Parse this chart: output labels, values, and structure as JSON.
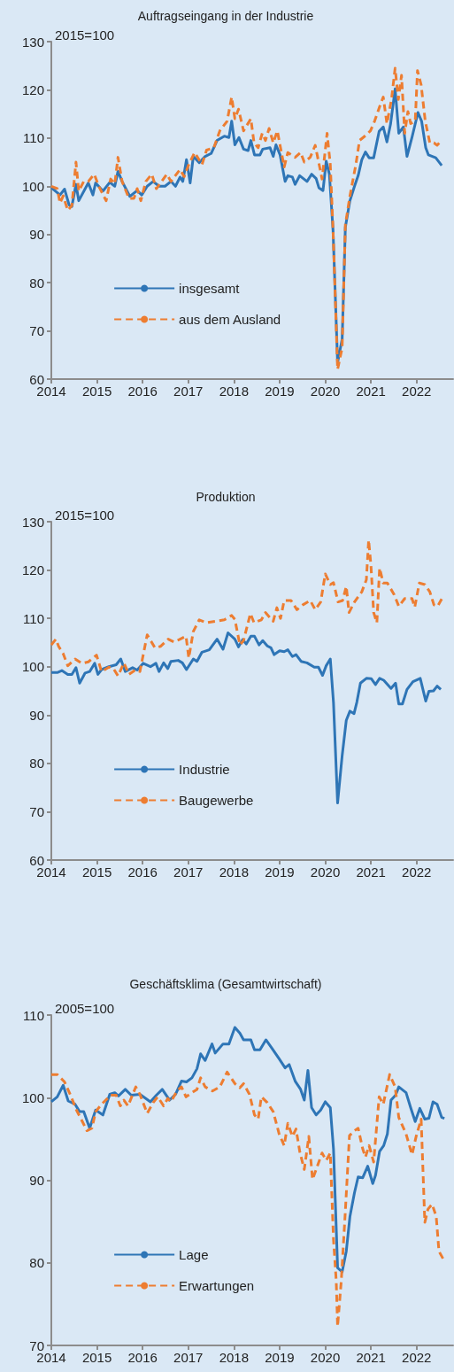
{
  "chart_data": [
    {
      "type": "line",
      "title": "Auftragseingang in der Industrie",
      "ylabel": "2015=100",
      "xlim": [
        2014,
        2022.8
      ],
      "xticks": [
        2014,
        2015,
        2016,
        2017,
        2018,
        2019,
        2020,
        2021,
        2022
      ],
      "ylim": [
        60,
        130
      ],
      "yticks": [
        60,
        70,
        80,
        90,
        100,
        110,
        120,
        130
      ],
      "legend": "bottom left",
      "series": [
        {
          "name": "insgesamt",
          "color": "#2e75b6",
          "line_style": "solid",
          "x": [
            2014.0,
            2014.19,
            2014.29,
            2014.39,
            2014.45,
            2014.54,
            2014.6,
            2014.81,
            2014.91,
            2014.97,
            2015.13,
            2015.28,
            2015.39,
            2015.46,
            2015.55,
            2015.72,
            2015.88,
            2015.98,
            2016.1,
            2016.23,
            2016.36,
            2016.49,
            2016.62,
            2016.72,
            2016.82,
            2016.88,
            2016.96,
            2017.04,
            2017.11,
            2017.24,
            2017.37,
            2017.5,
            2017.63,
            2017.79,
            2017.89,
            2017.95,
            2018.02,
            2018.11,
            2018.21,
            2018.31,
            2018.37,
            2018.45,
            2018.57,
            2018.63,
            2018.79,
            2018.86,
            2018.92,
            2019.01,
            2019.12,
            2019.18,
            2019.28,
            2019.34,
            2019.44,
            2019.6,
            2019.7,
            2019.8,
            2019.86,
            2019.95,
            2020.02,
            2020.09,
            2020.17,
            2020.27,
            2020.37,
            2020.44,
            2020.54,
            2020.64,
            2020.72,
            2020.8,
            2020.88,
            2020.96,
            2021.06,
            2021.18,
            2021.27,
            2021.35,
            2021.43,
            2021.53,
            2021.61,
            2021.71,
            2021.79,
            2021.9,
            2022.03,
            2022.11,
            2022.2,
            2022.26,
            2022.42,
            2022.55
          ],
          "values": [
            99.7,
            98.2,
            99.4,
            96.1,
            95.8,
            100.4,
            97,
            100.7,
            98.2,
            100.7,
            99,
            100.8,
            100,
            103.1,
            101,
            97.9,
            99.1,
            98.2,
            100,
            101,
            100,
            100,
            101,
            100,
            101.9,
            101,
            105.5,
            100.7,
            106.2,
            104.9,
            106.2,
            106.8,
            109.5,
            110.4,
            110.1,
            113.5,
            108.6,
            110.1,
            107.7,
            107.4,
            109.5,
            106.5,
            106.5,
            107.7,
            108,
            106.2,
            108.6,
            106.5,
            101,
            102.2,
            101.9,
            100.4,
            102.2,
            101,
            102.5,
            101.6,
            99.7,
            99.1,
            105.2,
            102.5,
            90.9,
            63.4,
            68.3,
            91.5,
            97,
            100,
            102.2,
            105.5,
            107.1,
            105.9,
            105.9,
            111.4,
            112.3,
            109.2,
            112.9,
            120.2,
            111,
            112.3,
            106.2,
            110.2,
            115.3,
            113.5,
            108,
            106.5,
            105.9,
            104.3
          ]
        },
        {
          "name": "aus dem Ausland",
          "color": "#ed7d31",
          "line_style": "dashed",
          "x": [
            2014.0,
            2014.13,
            2014.19,
            2014.26,
            2014.36,
            2014.45,
            2014.54,
            2014.6,
            2014.71,
            2014.81,
            2014.94,
            2015.04,
            2015.2,
            2015.3,
            2015.39,
            2015.46,
            2015.55,
            2015.7,
            2015.81,
            2015.88,
            2015.96,
            2016.07,
            2016.2,
            2016.3,
            2016.53,
            2016.62,
            2016.82,
            2016.91,
            2017.01,
            2017.14,
            2017.3,
            2017.4,
            2017.56,
            2017.69,
            2017.85,
            2017.95,
            2018.02,
            2018.1,
            2018.21,
            2018.37,
            2018.44,
            2018.53,
            2018.62,
            2018.69,
            2018.77,
            2018.86,
            2018.95,
            2019.02,
            2019.1,
            2019.18,
            2019.34,
            2019.46,
            2019.54,
            2019.67,
            2019.78,
            2019.93,
            2020.04,
            2020.11,
            2020.17,
            2020.27,
            2020.37,
            2020.44,
            2020.54,
            2020.67,
            2020.75,
            2020.88,
            2020.99,
            2021.08,
            2021.19,
            2021.27,
            2021.35,
            2021.45,
            2021.53,
            2021.6,
            2021.67,
            2021.74,
            2021.81,
            2021.87,
            2021.97,
            2022.02,
            2022.1,
            2022.19,
            2022.29,
            2022.38,
            2022.45,
            2022.55
          ],
          "values": [
            100,
            99.5,
            96.5,
            98,
            95,
            96,
            105,
            99,
            101,
            101,
            102.5,
            100,
            97,
            101.5,
            100.5,
            106,
            101,
            97.5,
            97.5,
            99.5,
            97,
            101,
            102.5,
            99.5,
            102.5,
            101,
            103.5,
            102,
            104.5,
            107,
            104.5,
            107.5,
            108,
            111.5,
            113.5,
            118.5,
            114,
            116,
            111.5,
            114,
            109,
            108,
            111,
            109.5,
            112,
            109,
            111.5,
            108,
            104,
            107,
            106,
            107,
            105,
            106,
            108.5,
            101.5,
            111,
            104.5,
            91,
            62,
            66.5,
            92,
            98,
            104.5,
            109.5,
            110.5,
            111.5,
            113.5,
            116.5,
            118.5,
            113,
            118,
            124.5,
            118,
            123,
            111,
            115.5,
            113,
            113.5,
            124,
            121,
            113.5,
            109,
            109,
            108.5,
            109.5
          ]
        }
      ]
    },
    {
      "type": "line",
      "title": "Produktion",
      "ylabel": "2015=100",
      "xlim": [
        2014,
        2022.8
      ],
      "xticks": [
        2014,
        2015,
        2016,
        2017,
        2018,
        2019,
        2020,
        2021,
        2022
      ],
      "ylim": [
        60,
        130
      ],
      "yticks": [
        60,
        70,
        80,
        90,
        100,
        110,
        120,
        130
      ],
      "legend": "bottom left",
      "series": [
        {
          "name": "Industrie",
          "color": "#2e75b6",
          "line_style": "solid",
          "x": [
            2014,
            2014.13,
            2014.23,
            2014.36,
            2014.45,
            2014.54,
            2014.62,
            2014.74,
            2014.84,
            2014.95,
            2015.02,
            2015.1,
            2015.26,
            2015.42,
            2015.52,
            2015.62,
            2015.78,
            2015.88,
            2016.01,
            2016.17,
            2016.29,
            2016.36,
            2016.46,
            2016.55,
            2016.62,
            2016.78,
            2016.87,
            2016.96,
            2017.11,
            2017.19,
            2017.3,
            2017.46,
            2017.63,
            2017.76,
            2017.87,
            2018.02,
            2018.1,
            2018.19,
            2018.27,
            2018.37,
            2018.45,
            2018.55,
            2018.63,
            2018.73,
            2018.81,
            2018.88,
            2019.0,
            2019.1,
            2019.18,
            2019.28,
            2019.36,
            2019.47,
            2019.6,
            2019.76,
            2019.85,
            2019.94,
            2020.02,
            2020.11,
            2020.18,
            2020.27,
            2020.37,
            2020.46,
            2020.54,
            2020.63,
            2020.69,
            2020.77,
            2020.9,
            2021.01,
            2021.1,
            2021.19,
            2021.28,
            2021.44,
            2021.54,
            2021.61,
            2021.69,
            2021.79,
            2021.92,
            2022.08,
            2022.2,
            2022.27,
            2022.37,
            2022.45,
            2022.53
          ],
          "values": [
            98.8,
            98.8,
            99.2,
            98.4,
            98.4,
            99.8,
            96.6,
            98.7,
            99,
            100.7,
            98.4,
            99.4,
            100,
            100.4,
            101.6,
            99,
            99.8,
            99.3,
            100.7,
            100,
            100.7,
            99,
            100.8,
            99.6,
            101.1,
            101.3,
            100.8,
            99.4,
            101.6,
            101.1,
            103,
            103.5,
            105.7,
            103.6,
            107,
            105.7,
            104.1,
            105.6,
            104.7,
            106.3,
            106.3,
            104.5,
            105.4,
            104.3,
            103.9,
            102.5,
            103.3,
            103.1,
            103.5,
            102.1,
            102.5,
            101.1,
            100.8,
            99.9,
            99.9,
            98.2,
            100.2,
            101.6,
            92.6,
            71.8,
            81.6,
            88.9,
            90.8,
            90.3,
            92.6,
            96.6,
            97.6,
            97.5,
            96.3,
            97.6,
            97.2,
            95.5,
            96.6,
            92.3,
            92.3,
            95.3,
            96.9,
            97.6,
            92.9,
            94.9,
            95,
            96,
            95.3
          ]
        },
        {
          "name": "Baugewerbe",
          "color": "#ed7d31",
          "line_style": "dashed",
          "x": [
            2014,
            2014.1,
            2014.16,
            2014.26,
            2014.36,
            2014.52,
            2014.67,
            2014.81,
            2014.99,
            2015.1,
            2015.26,
            2015.36,
            2015.46,
            2015.59,
            2015.7,
            2015.85,
            2015.94,
            2016.1,
            2016.27,
            2016.39,
            2016.56,
            2016.69,
            2016.82,
            2016.95,
            2017.01,
            2017.11,
            2017.24,
            2017.4,
            2017.59,
            2017.79,
            2017.95,
            2018.02,
            2018.13,
            2018.21,
            2018.36,
            2018.44,
            2018.6,
            2018.69,
            2018.86,
            2018.94,
            2019.02,
            2019.1,
            2019.25,
            2019.38,
            2019.51,
            2019.67,
            2019.78,
            2019.9,
            2020.0,
            2020.11,
            2020.18,
            2020.28,
            2020.38,
            2020.46,
            2020.52,
            2020.64,
            2020.8,
            2020.9,
            2020.95,
            2021.0,
            2021.06,
            2021.13,
            2021.19,
            2021.27,
            2021.36,
            2021.51,
            2021.61,
            2021.74,
            2021.9,
            2021.96,
            2022.06,
            2022.18,
            2022.29,
            2022.38,
            2022.46,
            2022.55
          ],
          "values": [
            104.5,
            105.7,
            104.2,
            102.7,
            100.2,
            101.6,
            100.7,
            101,
            102.4,
            99,
            99.9,
            99.6,
            98.1,
            100.8,
            98.4,
            99.4,
            99,
            106.6,
            103.9,
            104.2,
            105.7,
            105.1,
            105.7,
            106.3,
            101.8,
            107.3,
            109.7,
            109.1,
            109.4,
            109.7,
            110.6,
            109.8,
            104.5,
            105.4,
            111,
            109.1,
            109.7,
            111.2,
            109.4,
            112.2,
            110,
            113.7,
            113.7,
            111.8,
            112.8,
            113.7,
            111.8,
            113.4,
            119.2,
            117,
            117.4,
            113.4,
            113.7,
            116.6,
            111.2,
            113.4,
            115.5,
            118,
            126.2,
            121,
            111.2,
            109.1,
            120.4,
            117.3,
            117.3,
            114.9,
            112.5,
            114.1,
            114.1,
            112.3,
            117.3,
            117,
            115.5,
            112.8,
            112.5,
            114
          ]
        }
      ]
    },
    {
      "type": "line",
      "title": "Geschäftsklima (Gesamtwirtschaft)",
      "ylabel": "2005=100",
      "xlim": [
        2014,
        2022.8
      ],
      "xticks": [
        2014,
        2015,
        2016,
        2017,
        2018,
        2019,
        2020,
        2021,
        2022
      ],
      "ylim": [
        70,
        110
      ],
      "yticks": [
        70,
        80,
        90,
        100,
        110
      ],
      "legend": "bottom left",
      "series": [
        {
          "name": "Lage",
          "color": "#2e75b6",
          "line_style": "solid",
          "x": [
            2014,
            2014.13,
            2014.26,
            2014.37,
            2014.52,
            2014.62,
            2014.71,
            2014.84,
            2014.97,
            2015.13,
            2015.28,
            2015.39,
            2015.47,
            2015.62,
            2015.75,
            2015.94,
            2016.07,
            2016.17,
            2016.3,
            2016.43,
            2016.59,
            2016.72,
            2016.85,
            2016.96,
            2017.08,
            2017.19,
            2017.27,
            2017.37,
            2017.52,
            2017.59,
            2017.76,
            2017.89,
            2018.02,
            2018.13,
            2018.21,
            2018.37,
            2018.45,
            2018.57,
            2018.7,
            2018.83,
            2018.99,
            2019.12,
            2019.21,
            2019.34,
            2019.46,
            2019.54,
            2019.62,
            2019.7,
            2019.8,
            2019.9,
            2020.0,
            2020.11,
            2020.18,
            2020.27,
            2020.37,
            2020.46,
            2020.54,
            2020.64,
            2020.72,
            2020.82,
            2020.93,
            2021.04,
            2021.1,
            2021.19,
            2021.28,
            2021.36,
            2021.44,
            2021.54,
            2021.61,
            2021.77,
            2021.87,
            2021.97,
            2022.07,
            2022.18,
            2022.27,
            2022.36,
            2022.45,
            2022.55,
            2022.61
          ],
          "values": [
            99.5,
            100.1,
            101.5,
            99.6,
            99.2,
            98.3,
            98.3,
            96.3,
            98.5,
            97.9,
            100.4,
            100.6,
            100.2,
            101,
            100.3,
            100.4,
            99.9,
            99.5,
            100.3,
            101,
            99.7,
            100.4,
            102,
            101.9,
            102.4,
            103.5,
            105.3,
            104.5,
            106.5,
            105.4,
            106.5,
            106.5,
            108.5,
            107.8,
            107,
            107,
            105.8,
            105.8,
            107,
            106,
            104.7,
            103.6,
            104,
            102,
            101,
            99.7,
            103.3,
            98.8,
            97.9,
            98.5,
            99.5,
            98.8,
            93.8,
            79.4,
            78.9,
            81.4,
            85.6,
            88.5,
            90.4,
            90.3,
            91.7,
            89.6,
            90.6,
            93.5,
            94.2,
            95.6,
            99.7,
            100.3,
            101.3,
            100.6,
            98.8,
            97.1,
            98.7,
            97.4,
            97.5,
            99.5,
            99.2,
            97.6,
            97.5
          ]
        },
        {
          "name": "Erwartungen",
          "color": "#ed7d31",
          "line_style": "dashed",
          "x": [
            2014,
            2014.13,
            2014.29,
            2014.42,
            2014.55,
            2014.68,
            2014.78,
            2014.89,
            2014.97,
            2015.1,
            2015.3,
            2015.42,
            2015.51,
            2015.59,
            2015.68,
            2015.85,
            2015.94,
            2016.1,
            2016.23,
            2016.33,
            2016.46,
            2016.55,
            2016.62,
            2016.75,
            2016.85,
            2016.95,
            2017.08,
            2017.19,
            2017.27,
            2017.37,
            2017.53,
            2017.69,
            2017.85,
            2018.02,
            2018.13,
            2018.21,
            2018.34,
            2018.45,
            2018.53,
            2018.6,
            2018.73,
            2018.86,
            2018.99,
            2019.1,
            2019.18,
            2019.28,
            2019.36,
            2019.44,
            2019.54,
            2019.64,
            2019.72,
            2019.8,
            2019.93,
            2020.02,
            2020.11,
            2020.18,
            2020.24,
            2020.27,
            2020.35,
            2020.44,
            2020.53,
            2020.64,
            2020.72,
            2020.82,
            2020.88,
            2020.96,
            2021.06,
            2021.18,
            2021.27,
            2021.41,
            2021.53,
            2021.61,
            2021.77,
            2021.9,
            2021.99,
            2022.1,
            2022.18,
            2022.25,
            2022.34,
            2022.43,
            2022.49,
            2022.58,
            2022.66
          ],
          "values": [
            102.8,
            102.8,
            101.9,
            100.3,
            98.5,
            97.1,
            96,
            96.3,
            98.3,
            99.2,
            100.3,
            100.3,
            99,
            99.7,
            99,
            101.3,
            100.4,
            98.1,
            99.4,
            100.1,
            99,
            99.9,
            99.5,
            100.8,
            101.3,
            100.1,
            100.6,
            101,
            102.4,
            101.3,
            100.8,
            101.3,
            103.1,
            101.7,
            101.2,
            101.7,
            100.4,
            97.9,
            97.4,
            100.1,
            99.4,
            98.3,
            95.6,
            94.2,
            96.9,
            95.3,
            96.2,
            93.5,
            91.3,
            95.3,
            90.1,
            91.3,
            93.3,
            92.4,
            93.3,
            82.8,
            77.8,
            72.3,
            77.8,
            86.3,
            95.4,
            96,
            96.3,
            93.8,
            92.8,
            94.2,
            92.2,
            100.1,
            99.2,
            102.8,
            101.3,
            97.6,
            95.6,
            93.1,
            95.3,
            97.4,
            84.9,
            86.5,
            87.1,
            85.6,
            81.4,
            80.5,
            80.3
          ]
        }
      ]
    }
  ]
}
